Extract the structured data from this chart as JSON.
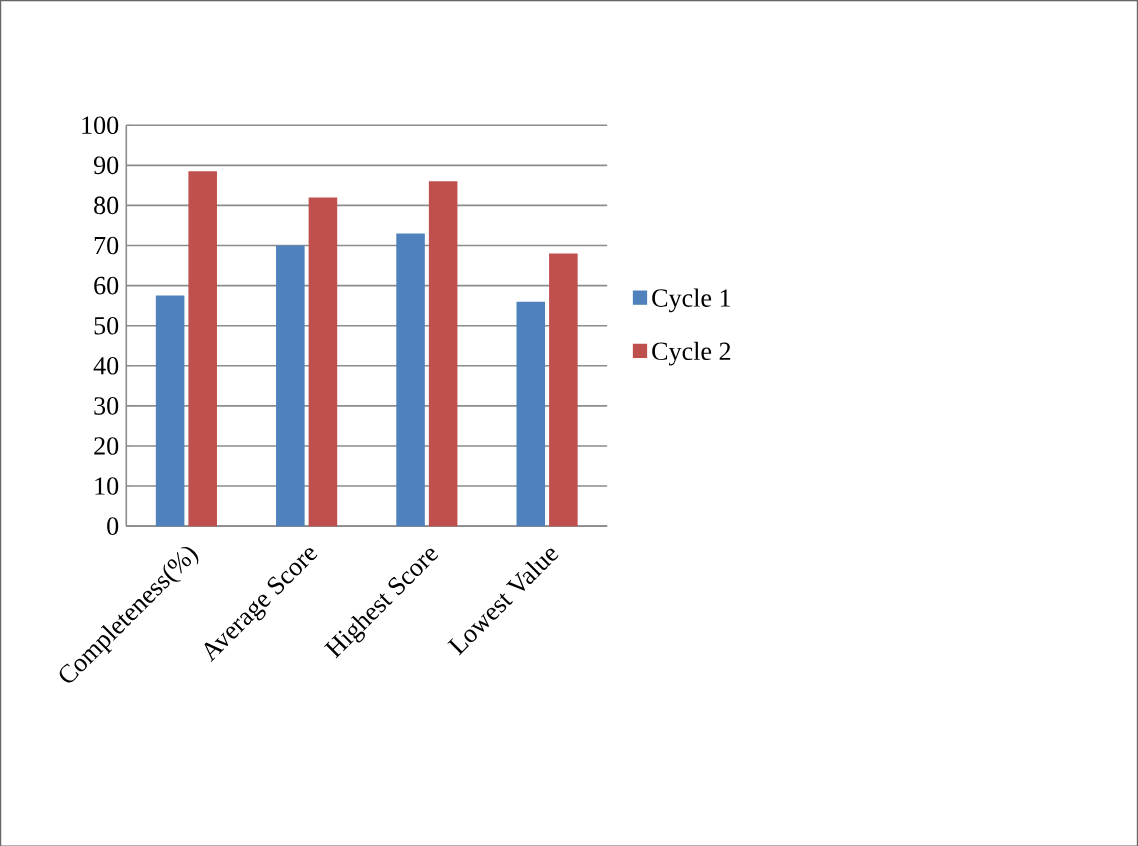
{
  "chart_data": {
    "type": "bar",
    "categories": [
      "Completeness(%)",
      "Average Score",
      "Highest Score",
      "Lowest Value"
    ],
    "series": [
      {
        "name": "Cycle 1",
        "color": "#4f81bd",
        "values": [
          57.5,
          70,
          73,
          56
        ]
      },
      {
        "name": "Cycle 2",
        "color": "#c0504d",
        "values": [
          88.5,
          82,
          86,
          68
        ]
      }
    ],
    "ylim": [
      0,
      100
    ],
    "yticks": [
      0,
      10,
      20,
      30,
      40,
      50,
      60,
      70,
      80,
      90,
      100
    ],
    "grid": "y",
    "legend": "right"
  }
}
